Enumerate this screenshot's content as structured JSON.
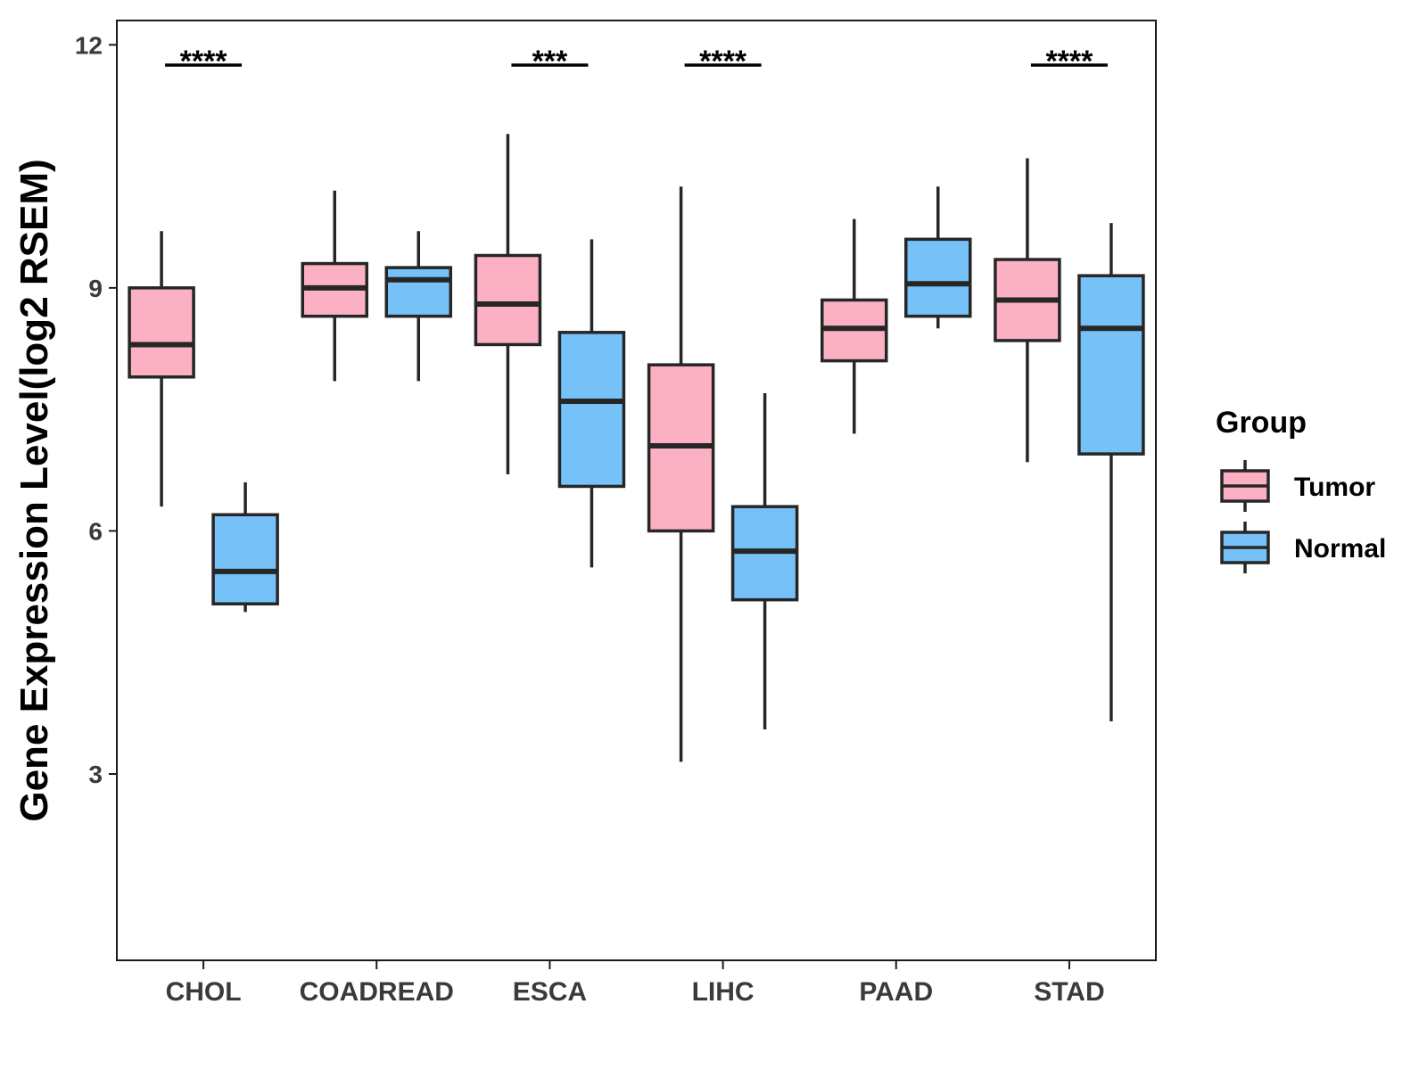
{
  "chart_data": {
    "type": "boxplot",
    "title": "",
    "xlabel": "",
    "ylabel": "Gene Expression Level(log2 RSEM)",
    "ylim": [
      0.7,
      12.3
    ],
    "yticks": [
      3,
      6,
      9,
      12
    ],
    "categories": [
      "CHOL",
      "COADREAD",
      "ESCA",
      "LIHC",
      "PAAD",
      "STAD"
    ],
    "legend": {
      "title": "Group",
      "position": "right",
      "entries": [
        {
          "name": "Tumor",
          "color": "#FBB1C3"
        },
        {
          "name": "Normal",
          "color": "#75C1F8"
        }
      ]
    },
    "series": [
      {
        "name": "Tumor",
        "color": "#FBB1C3",
        "boxes": [
          {
            "category": "CHOL",
            "whisker_low": 6.3,
            "q1": 7.9,
            "median": 8.3,
            "q3": 9.0,
            "whisker_high": 9.7
          },
          {
            "category": "COADREAD",
            "whisker_low": 7.85,
            "q1": 8.65,
            "median": 9.0,
            "q3": 9.3,
            "whisker_high": 10.2
          },
          {
            "category": "ESCA",
            "whisker_low": 6.7,
            "q1": 8.3,
            "median": 8.8,
            "q3": 9.4,
            "whisker_high": 10.9
          },
          {
            "category": "LIHC",
            "whisker_low": 3.15,
            "q1": 6.0,
            "median": 7.05,
            "q3": 8.05,
            "whisker_high": 10.25
          },
          {
            "category": "PAAD",
            "whisker_low": 7.2,
            "q1": 8.1,
            "median": 8.5,
            "q3": 8.85,
            "whisker_high": 9.85
          },
          {
            "category": "STAD",
            "whisker_low": 6.85,
            "q1": 8.35,
            "median": 8.85,
            "q3": 9.35,
            "whisker_high": 10.6
          }
        ]
      },
      {
        "name": "Normal",
        "color": "#75C1F8",
        "boxes": [
          {
            "category": "CHOL",
            "whisker_low": 5.0,
            "q1": 5.1,
            "median": 5.5,
            "q3": 6.2,
            "whisker_high": 6.6
          },
          {
            "category": "COADREAD",
            "whisker_low": 7.85,
            "q1": 8.65,
            "median": 9.1,
            "q3": 9.25,
            "whisker_high": 9.7
          },
          {
            "category": "ESCA",
            "whisker_low": 5.55,
            "q1": 6.55,
            "median": 7.6,
            "q3": 8.45,
            "whisker_high": 9.6
          },
          {
            "category": "LIHC",
            "whisker_low": 3.55,
            "q1": 5.15,
            "median": 5.75,
            "q3": 6.3,
            "whisker_high": 7.7
          },
          {
            "category": "PAAD",
            "whisker_low": 8.5,
            "q1": 8.65,
            "median": 9.05,
            "q3": 9.6,
            "whisker_high": 10.25
          },
          {
            "category": "STAD",
            "whisker_low": 3.65,
            "q1": 6.95,
            "median": 8.5,
            "q3": 9.15,
            "whisker_high": 9.8
          }
        ]
      }
    ],
    "annotations": [
      {
        "category": "CHOL",
        "text": "****",
        "y": 11.75
      },
      {
        "category": "ESCA",
        "text": "***",
        "y": 11.75
      },
      {
        "category": "LIHC",
        "text": "****",
        "y": 11.75
      },
      {
        "category": "STAD",
        "text": "****",
        "y": 11.75
      }
    ],
    "colors": {
      "outline": "#262626",
      "axis": "#1a1a1a",
      "tick_text": "#3a3a3a"
    }
  }
}
